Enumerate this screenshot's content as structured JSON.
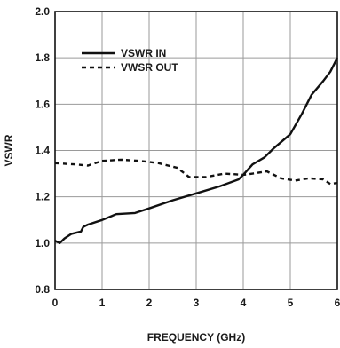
{
  "chart_data": {
    "type": "line",
    "xlabel": "FREQUENCY (GHz)",
    "ylabel": "VSWR",
    "xlim": [
      0,
      6
    ],
    "ylim": [
      0.8,
      2.0
    ],
    "xticks": [
      "0",
      "1",
      "2",
      "3",
      "4",
      "5",
      "6"
    ],
    "yticks": [
      "0.8",
      "1.0",
      "1.2",
      "1.4",
      "1.6",
      "1.8",
      "2.0"
    ],
    "grid": true,
    "legend": "top-left",
    "series": [
      {
        "name": "VSWR IN",
        "style": "solid",
        "color": "#111111",
        "points": [
          [
            0,
            1.01
          ],
          [
            0.1,
            1.0
          ],
          [
            0.2,
            1.02
          ],
          [
            0.35,
            1.04
          ],
          [
            0.55,
            1.05
          ],
          [
            0.6,
            1.07
          ],
          [
            0.7,
            1.08
          ],
          [
            1.0,
            1.1
          ],
          [
            1.3,
            1.125
          ],
          [
            1.7,
            1.13
          ],
          [
            2.0,
            1.15
          ],
          [
            2.5,
            1.185
          ],
          [
            3.0,
            1.215
          ],
          [
            3.5,
            1.245
          ],
          [
            3.9,
            1.275
          ],
          [
            4.0,
            1.295
          ],
          [
            4.2,
            1.34
          ],
          [
            4.45,
            1.37
          ],
          [
            4.65,
            1.41
          ],
          [
            5.0,
            1.47
          ],
          [
            5.25,
            1.56
          ],
          [
            5.45,
            1.64
          ],
          [
            5.7,
            1.7
          ],
          [
            5.85,
            1.74
          ],
          [
            6.0,
            1.8
          ]
        ]
      },
      {
        "name": "VWSR OUT",
        "style": "dashed",
        "color": "#111111",
        "points": [
          [
            0,
            1.345
          ],
          [
            0.4,
            1.34
          ],
          [
            0.7,
            1.335
          ],
          [
            1.0,
            1.355
          ],
          [
            1.4,
            1.36
          ],
          [
            1.8,
            1.355
          ],
          [
            2.2,
            1.345
          ],
          [
            2.6,
            1.325
          ],
          [
            2.85,
            1.285
          ],
          [
            3.2,
            1.285
          ],
          [
            3.6,
            1.3
          ],
          [
            4.0,
            1.295
          ],
          [
            4.2,
            1.3
          ],
          [
            4.5,
            1.31
          ],
          [
            4.8,
            1.28
          ],
          [
            5.1,
            1.27
          ],
          [
            5.4,
            1.28
          ],
          [
            5.7,
            1.275
          ],
          [
            5.85,
            1.255
          ],
          [
            6.0,
            1.26
          ]
        ]
      }
    ]
  }
}
